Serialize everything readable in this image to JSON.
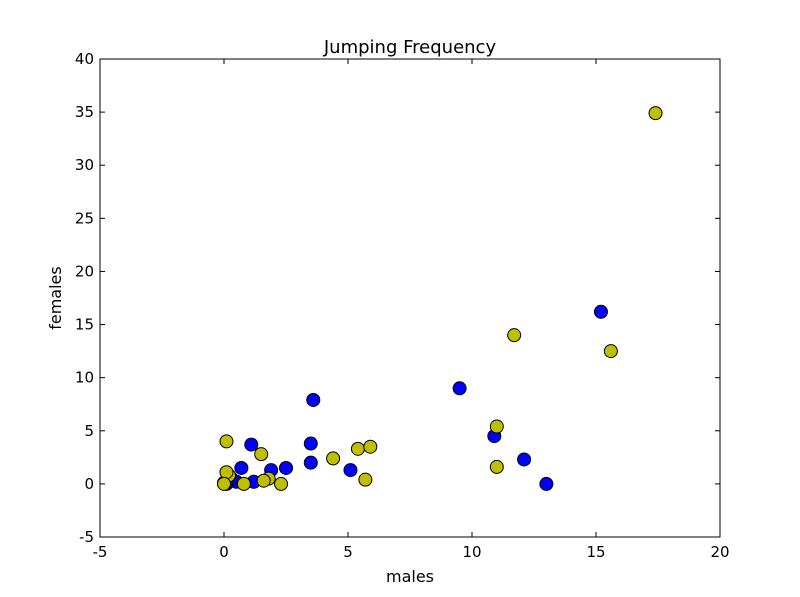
{
  "chart_data": {
    "type": "scatter",
    "title": "Jumping Frequency",
    "xlabel": "males",
    "ylabel": "females",
    "xlim": [
      -5,
      20
    ],
    "ylim": [
      -5,
      40
    ],
    "xticks": [
      -5,
      0,
      5,
      10,
      15,
      20
    ],
    "yticks": [
      -5,
      0,
      5,
      10,
      15,
      20,
      25,
      30,
      35,
      40
    ],
    "grid": false,
    "series": [
      {
        "color": "#0000ff",
        "points": [
          [
            3.6,
            7.9
          ],
          [
            9.5,
            9.0
          ],
          [
            15.2,
            16.2
          ],
          [
            10.9,
            4.5
          ],
          [
            12.1,
            2.3
          ],
          [
            13.0,
            0.0
          ],
          [
            3.5,
            3.8
          ],
          [
            3.5,
            2.0
          ],
          [
            5.1,
            1.3
          ],
          [
            2.5,
            1.5
          ],
          [
            1.9,
            1.3
          ],
          [
            1.1,
            3.7
          ],
          [
            0.7,
            1.5
          ],
          [
            1.2,
            0.2
          ],
          [
            0.5,
            0.2
          ],
          [
            0.3,
            0.5
          ],
          [
            0.0,
            0.1
          ],
          [
            0.1,
            0.0
          ]
        ]
      },
      {
        "color": "#bfbf00",
        "points": [
          [
            17.4,
            34.9
          ],
          [
            11.7,
            14.0
          ],
          [
            15.6,
            12.5
          ],
          [
            11.0,
            5.4
          ],
          [
            11.0,
            1.6
          ],
          [
            0.1,
            4.0
          ],
          [
            1.5,
            2.8
          ],
          [
            4.4,
            2.4
          ],
          [
            5.4,
            3.3
          ],
          [
            5.9,
            3.5
          ],
          [
            5.7,
            0.4
          ],
          [
            2.3,
            0.0
          ],
          [
            1.8,
            0.5
          ],
          [
            1.6,
            0.3
          ],
          [
            0.8,
            0.0
          ],
          [
            0.2,
            0.8
          ],
          [
            0.1,
            1.1
          ],
          [
            0.0,
            0.0
          ]
        ]
      }
    ]
  }
}
